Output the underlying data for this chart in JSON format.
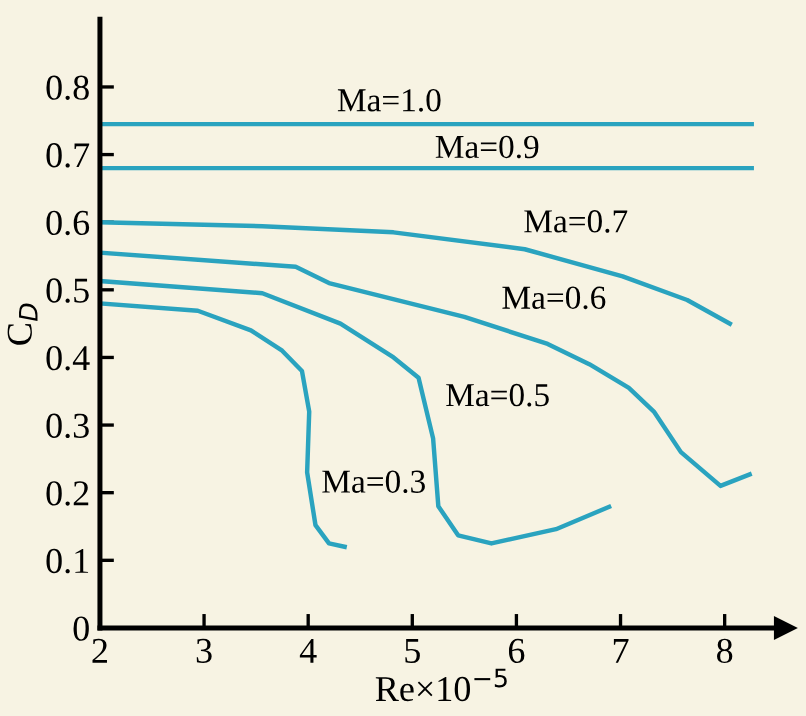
{
  "chart_data": {
    "type": "line",
    "xlabel": "Re×10$^{−5}$",
    "ylabel": "C$_{D}$",
    "xlim": [
      2,
      8.58
    ],
    "ylim": [
      0,
      0.9
    ],
    "xticks": [
      2,
      3,
      4,
      5,
      6,
      7,
      8
    ],
    "yticks": [
      0,
      0.1,
      0.2,
      0.3,
      0.4,
      0.5,
      0.6,
      0.7,
      0.8
    ],
    "grid": false,
    "legend": false,
    "marker": "none",
    "line_style": "solid",
    "series": [
      {
        "name": "Ma=1.0",
        "color": "#2aa3bf",
        "x": [
          2,
          8.26
        ],
        "values": [
          0.745,
          0.745
        ]
      },
      {
        "name": "Ma=0.9",
        "color": "#2aa3bf",
        "x": [
          2,
          8.26
        ],
        "values": [
          0.68,
          0.68
        ]
      },
      {
        "name": "Ma=0.7",
        "color": "#2aa3bf",
        "x": [
          2,
          3.56,
          4.82,
          6.08,
          7.02,
          7.64,
          8.05
        ],
        "values": [
          0.6,
          0.594,
          0.585,
          0.56,
          0.52,
          0.485,
          0.45
        ]
      },
      {
        "name": "Ma=0.6",
        "color": "#2aa3bf",
        "x": [
          2,
          3.88,
          4.2,
          5.5,
          6.3,
          6.7,
          7.08,
          7.32,
          7.58,
          7.96,
          8.24
        ],
        "values": [
          0.555,
          0.534,
          0.51,
          0.46,
          0.42,
          0.39,
          0.355,
          0.32,
          0.26,
          0.21,
          0.227
        ]
      },
      {
        "name": "Ma=0.5",
        "color": "#2aa3bf",
        "x": [
          2,
          3.56,
          4.31,
          4.82,
          5.06,
          5.2,
          5.25,
          5.44,
          5.76,
          6.38,
          6.89
        ],
        "values": [
          0.513,
          0.495,
          0.45,
          0.4,
          0.37,
          0.28,
          0.18,
          0.137,
          0.125,
          0.146,
          0.179
        ]
      },
      {
        "name": "Ma=0.3",
        "color": "#2aa3bf",
        "x": [
          2,
          2.94,
          3.45,
          3.75,
          3.94,
          4.01,
          3.99,
          4.07,
          4.2,
          4.35
        ],
        "values": [
          0.48,
          0.469,
          0.44,
          0.41,
          0.38,
          0.32,
          0.23,
          0.152,
          0.125,
          0.12
        ]
      }
    ]
  }
}
